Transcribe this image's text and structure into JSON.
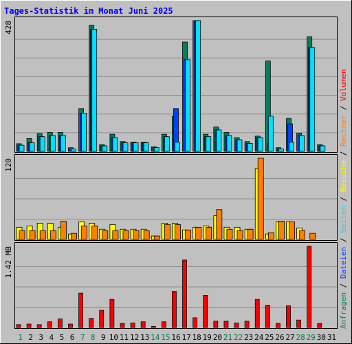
{
  "chart_data": {
    "type": "bar",
    "title": "Tages-Statistik im Monat Juni 2025",
    "colors": {
      "background": "#c0c0c0",
      "title": "#0000ff",
      "grid": "#8c8c8c",
      "anfragen": "#00805c",
      "dateien": "#0040ff",
      "seiten": "#00e0ff",
      "besuche": "#ffff00",
      "rechner": "#ff8000",
      "volumen": "#ff0000",
      "label_weekday": "#000000",
      "label_weekend": "#008040"
    },
    "x_labels": [
      "1",
      "2",
      "3",
      "4",
      "5",
      "6",
      "7",
      "8",
      "9",
      "10",
      "11",
      "12",
      "13",
      "14",
      "15",
      "16",
      "17",
      "18",
      "19",
      "20",
      "21",
      "22",
      "23",
      "24",
      "25",
      "26",
      "27",
      "28",
      "29",
      "30",
      "31"
    ],
    "weekend_days": [
      "1",
      "7",
      "8",
      "14",
      "15",
      "21",
      "22",
      "28",
      "29"
    ],
    "panels": [
      {
        "id": "hits",
        "max_label": "428",
        "max": 428,
        "series": [
          {
            "name": "Anfragen",
            "values": [
              25,
              42,
              58,
              62,
              62,
              12,
              140,
              413,
              22,
              56,
              32,
              30,
              30,
              15,
              56,
              115,
              358,
              428,
              56,
              80,
              62,
              45,
              32,
              50,
              296,
              12,
              108,
              60,
              375,
              22,
              null
            ]
          },
          {
            "name": "Dateien",
            "values": [
              20,
              28,
              48,
              52,
              52,
              8,
              125,
              400,
              18,
              45,
              28,
              28,
              28,
              12,
              48,
              140,
              300,
              428,
              48,
              70,
              52,
              38,
              26,
              45,
              25,
              8,
              90,
              52,
              340,
              18,
              null
            ]
          },
          {
            "name": "Seiten",
            "values": [
              20,
              28,
              48,
              52,
              52,
              8,
              125,
              400,
              18,
              45,
              28,
              28,
              28,
              12,
              48,
              30,
              300,
              428,
              48,
              70,
              52,
              38,
              26,
              45,
              115,
              8,
              30,
              52,
              340,
              18,
              null
            ]
          }
        ]
      },
      {
        "id": "visits",
        "max_label": "120",
        "max": 120,
        "series": [
          {
            "name": "Besuche",
            "values": [
              18,
              20,
              24,
              24,
              18,
              8,
              26,
              24,
              15,
              22,
              15,
              15,
              15,
              5,
              24,
              24,
              14,
              18,
              20,
              35,
              18,
              18,
              15,
              105,
              8,
              26,
              26,
              17,
              null,
              null,
              null
            ]
          },
          {
            "name": "Rechner",
            "values": [
              13,
              13,
              13,
              13,
              27,
              9,
              20,
              20,
              13,
              13,
              13,
              13,
              13,
              5,
              22,
              22,
              14,
              18,
              18,
              44,
              15,
              13,
              15,
              120,
              10,
              27,
              26,
              13,
              9,
              null,
              null
            ]
          }
        ]
      },
      {
        "id": "volume",
        "max_label": "1.42 MB",
        "max": 1.42,
        "series": [
          {
            "name": "Volumen",
            "values": [
              0.05,
              0.06,
              0.05,
              0.1,
              0.15,
              0.06,
              0.6,
              0.16,
              0.3,
              0.49,
              0.07,
              0.08,
              0.1,
              0.02,
              0.1,
              0.63,
              1.18,
              0.17,
              0.56,
              0.11,
              0.11,
              0.08,
              0.11,
              0.49,
              0.39,
              0.07,
              0.38,
              0.13,
              1.42,
              0.07,
              null
            ]
          }
        ]
      }
    ],
    "legend_right": [
      {
        "text": "Anfragen",
        "color": "#00805c"
      },
      {
        "text": "Dateien",
        "color": "#0040ff"
      },
      {
        "text": "Seiten",
        "color": "#00e0ff"
      },
      {
        "text": "Besuche",
        "color": "#ffff00"
      },
      {
        "text": "Rechner",
        "color": "#ff8000"
      },
      {
        "text": "Volumen",
        "color": "#ff0000"
      }
    ],
    "legend_separator": " / "
  }
}
